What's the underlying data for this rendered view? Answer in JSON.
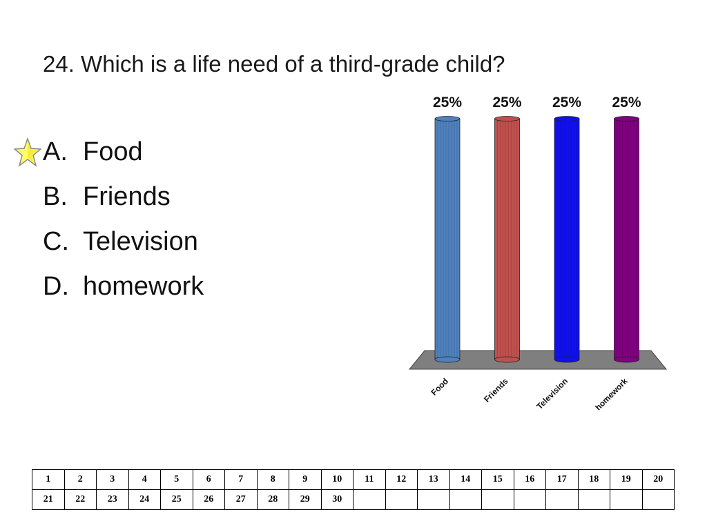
{
  "question": "24. Which is a life need of a third-grade child?",
  "answers": [
    {
      "letter": "A.",
      "text": "Food"
    },
    {
      "letter": "B.",
      "text": "Friends"
    },
    {
      "letter": "C.",
      "text": "Television"
    },
    {
      "letter": "D.",
      "text": "homework"
    }
  ],
  "correct_marker": "star-icon",
  "chart_data": {
    "type": "bar",
    "categories": [
      "Food",
      "Friends",
      "Television",
      "homework"
    ],
    "values": [
      25,
      25,
      25,
      25
    ],
    "data_labels": [
      "25%",
      "25%",
      "25%",
      "25%"
    ],
    "colors": [
      "#4f81bd",
      "#c0504d",
      "#1010ee",
      "#800080"
    ],
    "ylim": [
      0,
      25
    ],
    "grid": false,
    "legend": "none"
  },
  "response_grid": {
    "rows": [
      [
        "1",
        "2",
        "3",
        "4",
        "5",
        "6",
        "7",
        "8",
        "9",
        "10",
        "11",
        "12",
        "13",
        "14",
        "15",
        "16",
        "17",
        "18",
        "19",
        "20"
      ],
      [
        "21",
        "22",
        "23",
        "24",
        "25",
        "26",
        "27",
        "28",
        "29",
        "30",
        "",
        "",
        "",
        "",
        "",
        "",
        "",
        "",
        "",
        ""
      ]
    ]
  }
}
